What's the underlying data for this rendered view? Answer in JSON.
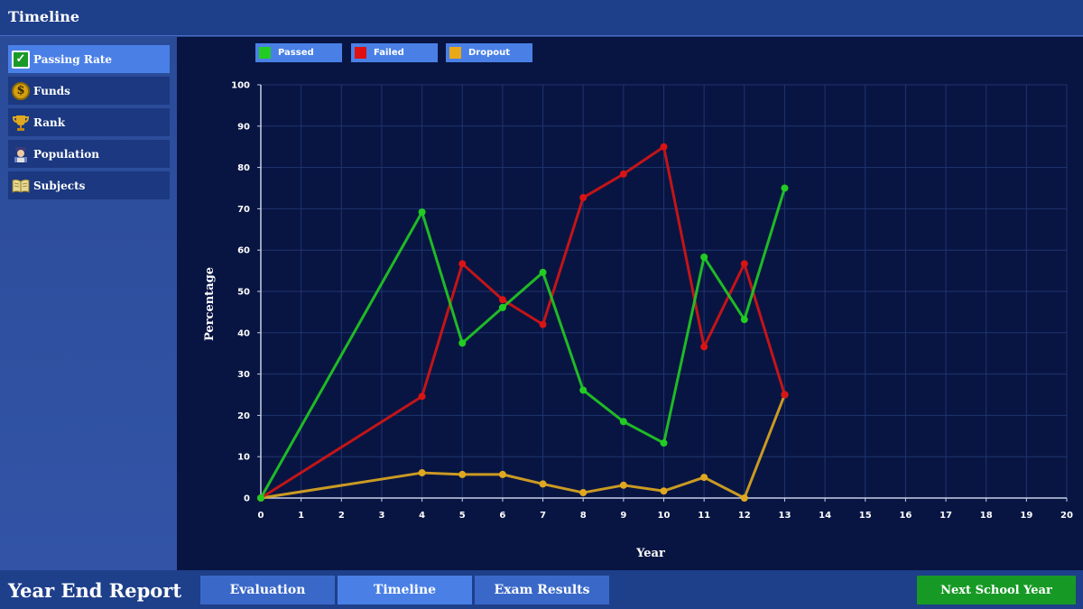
{
  "header": {
    "title": "Timeline"
  },
  "sidebar": {
    "items": [
      {
        "label": "Passing Rate",
        "icon": "check-icon"
      },
      {
        "label": "Funds",
        "icon": "coin-icon"
      },
      {
        "label": "Rank",
        "icon": "trophy-icon"
      },
      {
        "label": "Population",
        "icon": "student-icon"
      },
      {
        "label": "Subjects",
        "icon": "book-icon"
      }
    ]
  },
  "legend": [
    {
      "label": "Passed",
      "color": "#22cc22"
    },
    {
      "label": "Failed",
      "color": "#e01010"
    },
    {
      "label": "Dropout",
      "color": "#e8a818"
    }
  ],
  "footer": {
    "title": "Year End Report",
    "tabs": [
      "Evaluation",
      "Timeline",
      "Exam Results"
    ],
    "next_label": "Next School Year"
  },
  "chart_data": {
    "type": "line",
    "xlabel": "Year",
    "ylabel": "Percentage",
    "xlim": [
      0,
      20
    ],
    "ylim": [
      0,
      100
    ],
    "xticks": [
      0,
      1,
      2,
      3,
      4,
      5,
      6,
      7,
      8,
      9,
      10,
      11,
      12,
      13,
      14,
      15,
      16,
      17,
      18,
      19,
      20
    ],
    "yticks": [
      0,
      10,
      20,
      30,
      40,
      50,
      60,
      70,
      80,
      90,
      100
    ],
    "grid": true,
    "legend_position": "top-left",
    "x": [
      0,
      4,
      5,
      6,
      7,
      8,
      9,
      10,
      11,
      12,
      13
    ],
    "series": [
      {
        "name": "Passed",
        "color": "#22cc22",
        "values": [
          0,
          69.2,
          37.5,
          46.1,
          54.6,
          26.1,
          18.5,
          13.3,
          58.3,
          43.2,
          75.0
        ]
      },
      {
        "name": "Failed",
        "color": "#d81414",
        "values": [
          0,
          24.6,
          56.7,
          48.0,
          42.0,
          72.7,
          78.4,
          85.0,
          36.6,
          56.7,
          25.0
        ]
      },
      {
        "name": "Dropout",
        "color": "#e0a820",
        "values": [
          0,
          6.1,
          5.7,
          5.7,
          3.4,
          1.3,
          3.1,
          1.7,
          5.0,
          0,
          25.0
        ]
      }
    ]
  }
}
